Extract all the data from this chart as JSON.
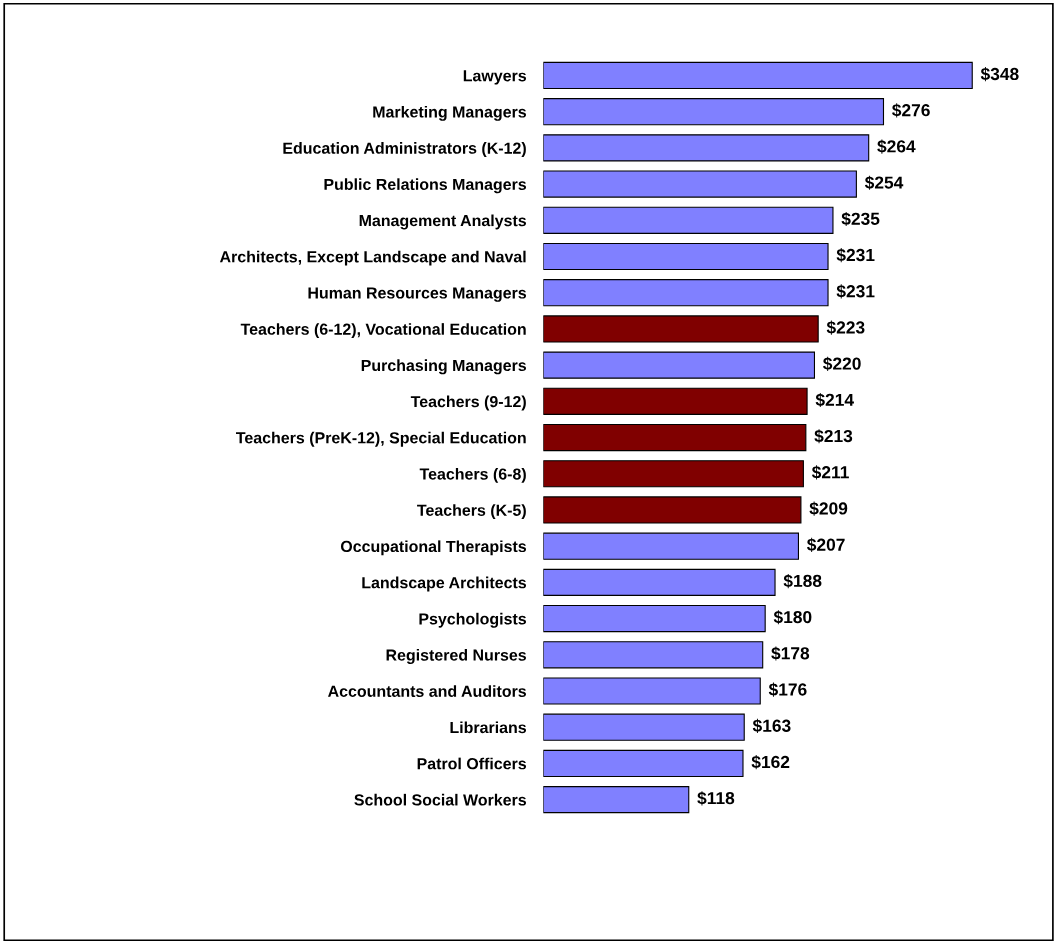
{
  "chart_data": {
    "type": "bar",
    "orientation": "horizontal",
    "categories": [
      "Lawyers",
      "Marketing Managers",
      "Education Administrators (K-12)",
      "Public Relations Managers",
      "Management Analysts",
      "Architects, Except Landscape and Naval",
      "Human Resources Managers",
      "Teachers (6-12), Vocational Education",
      "Purchasing Managers",
      "Teachers (9-12)",
      "Teachers (PreK-12), Special Education",
      "Teachers (6-8)",
      "Teachers (K-5)",
      "Occupational Therapists",
      "Landscape Architects",
      "Psychologists",
      "Registered Nurses",
      "Accountants and Auditors",
      "Librarians",
      "Patrol Officers",
      "School Social Workers"
    ],
    "values": [
      348,
      276,
      264,
      254,
      235,
      231,
      231,
      223,
      220,
      214,
      213,
      211,
      209,
      207,
      188,
      180,
      178,
      176,
      163,
      162,
      118
    ],
    "value_labels": [
      "$348",
      "$276",
      "$264",
      "$254",
      "$235",
      "$231",
      "$231",
      "$223",
      "$220",
      "$214",
      "$213",
      "$211",
      "$209",
      "$207",
      "$188",
      "$180",
      "$178",
      "$176",
      "$163",
      "$162",
      "$118"
    ],
    "colors": [
      "#8080ff",
      "#8080ff",
      "#8080ff",
      "#8080ff",
      "#8080ff",
      "#8080ff",
      "#8080ff",
      "#800000",
      "#8080ff",
      "#800000",
      "#800000",
      "#800000",
      "#800000",
      "#8080ff",
      "#8080ff",
      "#8080ff",
      "#8080ff",
      "#8080ff",
      "#8080ff",
      "#8080ff",
      "#8080ff"
    ],
    "grid": false,
    "legend": false
  }
}
